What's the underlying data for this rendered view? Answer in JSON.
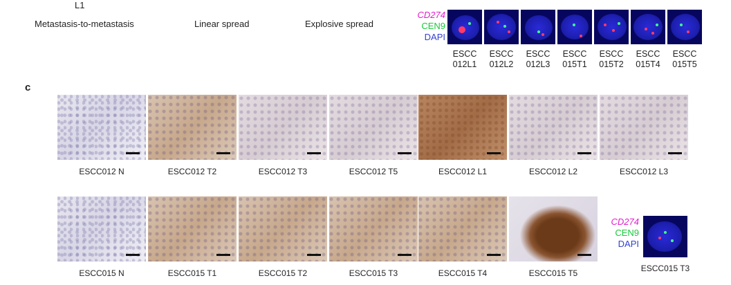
{
  "top": {
    "l1_label": "L1",
    "patterns": [
      "Metastasis-to-metastasis",
      "Linear spread",
      "Explosive spread"
    ]
  },
  "fish_legend": {
    "cd274": "CD274",
    "cen9": "CEN9",
    "dapi": "DAPI"
  },
  "fish_samples": [
    {
      "line1": "ESCC",
      "line2": "012L1"
    },
    {
      "line1": "ESCC",
      "line2": "012L2"
    },
    {
      "line1": "ESCC",
      "line2": "012L3"
    },
    {
      "line1": "ESCC",
      "line2": "015T1"
    },
    {
      "line1": "ESCC",
      "line2": "015T2"
    },
    {
      "line1": "ESCC",
      "line2": "015T4"
    },
    {
      "line1": "ESCC",
      "line2": "015T5"
    }
  ],
  "panel_c": {
    "letter": "c",
    "row1": [
      "ESCC012 N",
      "ESCC012 T2",
      "ESCC012 T3",
      "ESCC012 T5",
      "ESCC012 L1",
      "ESCC012 L2",
      "ESCC012 L3"
    ],
    "row2": [
      "ESCC015 N",
      "ESCC015 T1",
      "ESCC015 T2",
      "ESCC015 T3",
      "ESCC015 T4",
      "ESCC015 T5"
    ],
    "inset_legend": {
      "cd274": "CD274",
      "cen9": "CEN9",
      "dapi": "DAPI"
    },
    "inset_label": "ESCC015 T3"
  }
}
